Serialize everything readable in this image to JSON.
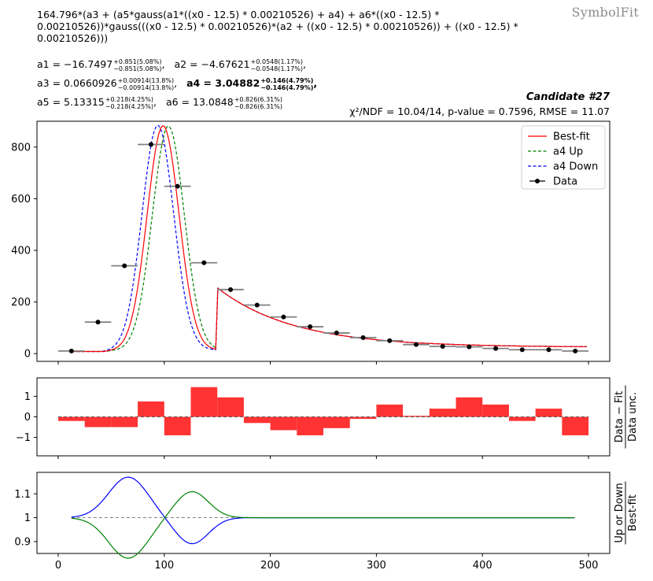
{
  "brand": "SymbolFit",
  "formula": "164.796*(a3 + (a5*gauss(a1*((x0 - 12.5) * 0.00210526) + a4) + a6*((x0 - 12.5) * 0.00210526))*gauss(((x0 - 12.5) * 0.00210526)*(a2 + ((x0 - 12.5) * 0.00210526)) + ((x0 - 12.5) * 0.00210526)))",
  "params": [
    {
      "name": "a1",
      "text": "a1 = −16.7497",
      "up": "+0.851(5.08%)",
      "down": "−0.851(5.08%)",
      "bold": false
    },
    {
      "name": "a2",
      "text": "a2 = −4.67621",
      "up": "+0.0548(1.17%)",
      "down": "−0.0548(1.17%)",
      "bold": false
    },
    {
      "name": "a3",
      "text": "a3 = 0.0660926",
      "up": "+0.00914(13.8%)",
      "down": "−0.00914(13.8%)",
      "bold": false
    },
    {
      "name": "a4",
      "text": "a4 = 3.04882",
      "up": "+0.146(4.79%)",
      "down": "−0.146(4.79%)",
      "bold": true
    },
    {
      "name": "a5",
      "text": "a5 = 5.13315",
      "up": "+0.218(4.25%)",
      "down": "−0.218(4.25%)",
      "bold": false
    },
    {
      "name": "a6",
      "text": "a6 = 13.0848",
      "up": "+0.826(6.31%)",
      "down": "−0.826(6.31%)",
      "bold": false
    }
  ],
  "candidate": "Candidate #27",
  "stats": "χ²/NDF = 10.04/14, p-value = 0.7596, RMSE = 11.07",
  "colors": {
    "bestfit": "#ff0000",
    "up": "#008000",
    "down": "#0000ff",
    "data": "#000000",
    "residual": "#ff3333"
  },
  "chart_data": [
    {
      "type": "line",
      "name": "main",
      "xlim": [
        -20,
        520
      ],
      "ylim": [
        -30,
        900
      ],
      "yticks": [
        0,
        200,
        400,
        600,
        800
      ],
      "legend": {
        "placement": "top-right",
        "entries": [
          "Best-fit",
          "a4 Up",
          "a4 Down",
          "Data"
        ]
      },
      "data_points": {
        "x": [
          12.5,
          37.5,
          62.5,
          87.5,
          112.5,
          137.5,
          162.5,
          187.5,
          212.5,
          237.5,
          262.5,
          287.5,
          312.5,
          337.5,
          362.5,
          387.5,
          412.5,
          437.5,
          462.5,
          487.5
        ],
        "y": [
          10,
          122,
          340,
          810,
          648,
          352,
          248,
          188,
          142,
          104,
          80,
          62,
          50,
          35,
          28,
          26,
          20,
          15,
          15,
          10
        ]
      }
    },
    {
      "type": "bar",
      "name": "residual",
      "ylabel": "Data − Fit / Data unc.",
      "ylabel_top": "Data − Fit",
      "ylabel_bottom": "Data unc.",
      "ylim": [
        -1.9,
        1.9
      ],
      "yticks": [
        -1,
        0,
        1
      ],
      "bin_edges": [
        0,
        25,
        50,
        75,
        100,
        125,
        150,
        175,
        200,
        225,
        250,
        275,
        300,
        325,
        350,
        375,
        400,
        425,
        450,
        475,
        500
      ],
      "values": [
        -0.2,
        -0.5,
        -0.5,
        0.75,
        -0.9,
        1.45,
        0.95,
        -0.3,
        -0.65,
        -0.9,
        -0.55,
        -0.1,
        0.6,
        0.05,
        0.4,
        0.95,
        0.6,
        -0.2,
        0.4,
        -0.9
      ]
    },
    {
      "type": "line",
      "name": "ratio",
      "ylabel_top": "Up or Down",
      "ylabel_bottom": "Best-fit",
      "ylim": [
        0.85,
        1.19
      ],
      "yticks": [
        0.9,
        1,
        1.1
      ],
      "ytick_labels": [
        "0.9",
        "1",
        "1.1"
      ],
      "xticks": [
        0,
        100,
        200,
        300,
        400,
        500
      ]
    }
  ]
}
